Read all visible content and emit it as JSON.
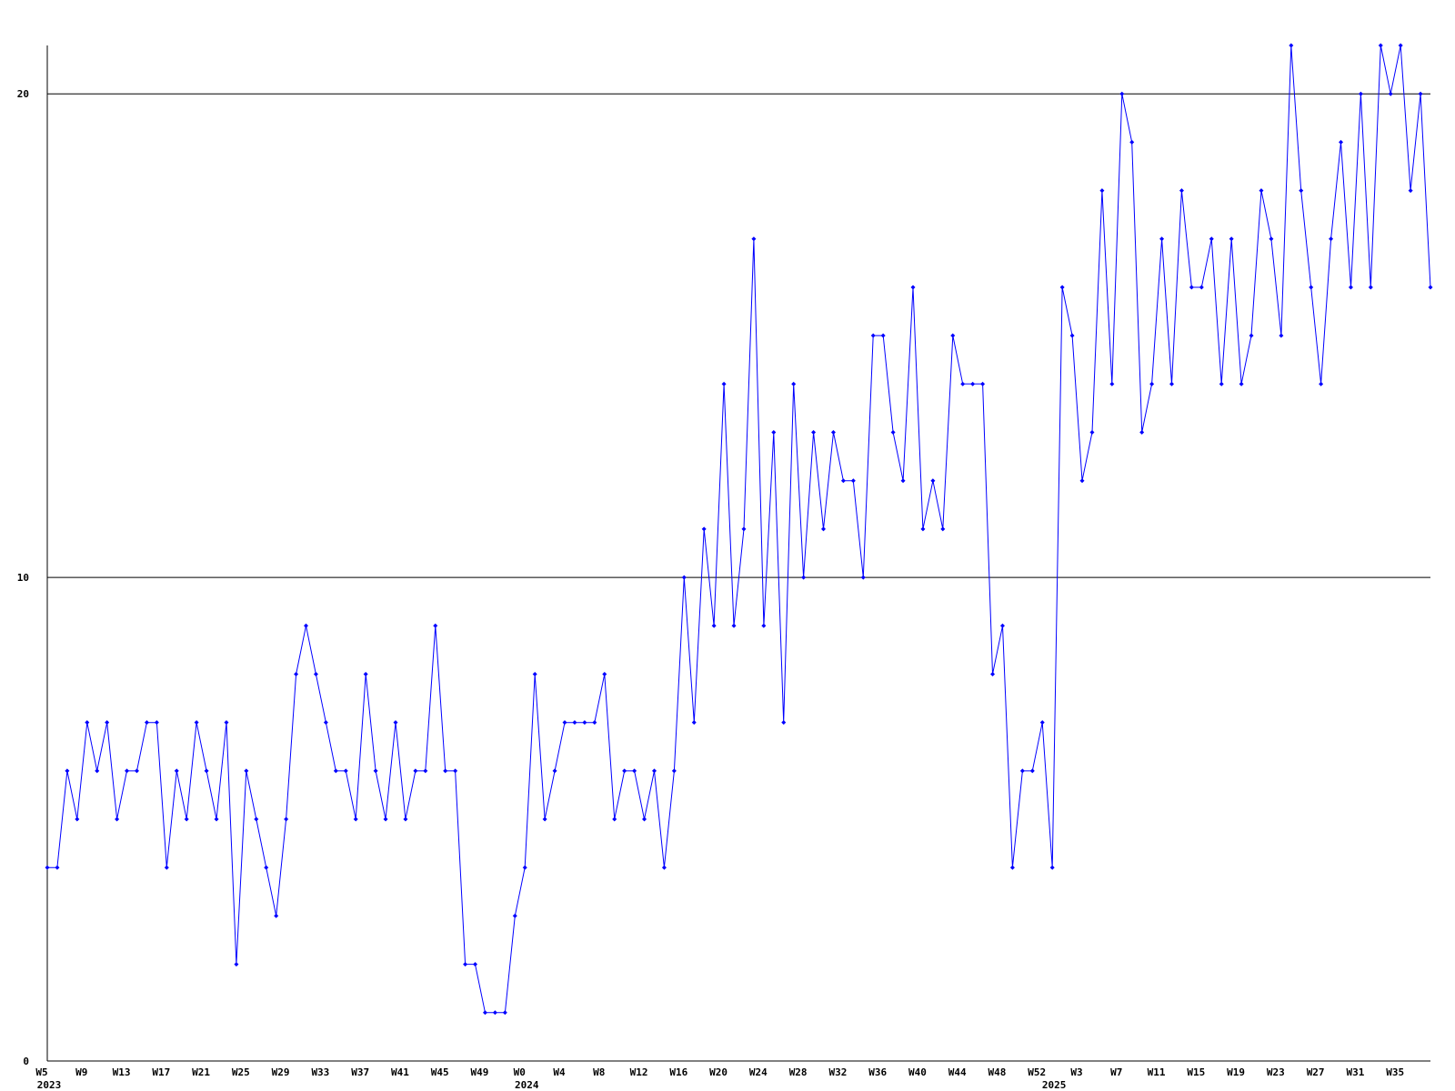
{
  "chart_data": {
    "type": "line",
    "color": "#0000ff",
    "categories": [
      "W5",
      null,
      null,
      null,
      "W9",
      null,
      null,
      null,
      "W13",
      null,
      null,
      null,
      "W17",
      null,
      null,
      null,
      "W21",
      null,
      null,
      null,
      "W25",
      null,
      null,
      null,
      "W29",
      null,
      null,
      null,
      "W33",
      null,
      null,
      null,
      "W37",
      null,
      null,
      null,
      "W41",
      null,
      null,
      null,
      "W45",
      null,
      null,
      null,
      "W49",
      null,
      null,
      null,
      "W0",
      null,
      null,
      null,
      "W4",
      null,
      null,
      null,
      "W8",
      null,
      null,
      null,
      "W12",
      null,
      null,
      null,
      "W16",
      null,
      null,
      null,
      "W20",
      null,
      null,
      null,
      "W24",
      null,
      null,
      null,
      "W28",
      null,
      null,
      null,
      "W32",
      null,
      null,
      null,
      "W36",
      null,
      null,
      null,
      "W40",
      null,
      null,
      null,
      "W44",
      null,
      null,
      null,
      "W48",
      null,
      null,
      null,
      "W52",
      null,
      null,
      null,
      "W3",
      null,
      null,
      null,
      "W7",
      null,
      null,
      null,
      "W11",
      null,
      null,
      null,
      "W15",
      null,
      null,
      null,
      "W19",
      null,
      null,
      null,
      "W23",
      null,
      null,
      null,
      "W27",
      null,
      null,
      null,
      "W31",
      null,
      null,
      null,
      "W35",
      null,
      null,
      null
    ],
    "category_years": [
      "2023",
      null,
      null,
      null,
      null,
      null,
      null,
      null,
      null,
      null,
      null,
      null,
      null,
      null,
      null,
      null,
      null,
      null,
      null,
      null,
      null,
      null,
      null,
      null,
      null,
      null,
      null,
      null,
      null,
      null,
      null,
      null,
      null,
      null,
      null,
      null,
      null,
      null,
      null,
      null,
      null,
      null,
      null,
      null,
      null,
      null,
      null,
      null,
      "2024",
      null,
      null,
      null,
      null,
      null,
      null,
      null,
      null,
      null,
      null,
      null,
      null,
      null,
      null,
      null,
      null,
      null,
      null,
      null,
      null,
      null,
      null,
      null,
      null,
      null,
      null,
      null,
      null,
      null,
      null,
      null,
      null,
      null,
      null,
      null,
      null,
      null,
      null,
      null,
      null,
      null,
      null,
      null,
      null,
      null,
      null,
      null,
      null,
      null,
      null,
      null,
      null,
      "2025",
      null,
      null,
      null,
      null,
      null,
      null,
      null,
      null,
      null,
      null,
      null,
      null,
      null,
      null,
      null,
      null,
      null,
      null,
      null,
      null,
      null,
      null,
      null,
      null,
      null,
      null,
      null,
      null,
      null,
      null,
      null,
      null,
      null,
      null,
      null,
      null,
      null,
      null
    ],
    "values": [
      4,
      4,
      6,
      5,
      7,
      6,
      7,
      5,
      6,
      6,
      7,
      7,
      4,
      6,
      5,
      7,
      6,
      5,
      7,
      2,
      6,
      5,
      4,
      3,
      5,
      8,
      9,
      8,
      7,
      6,
      6,
      5,
      8,
      6,
      5,
      7,
      5,
      6,
      6,
      9,
      6,
      6,
      2,
      2,
      1,
      1,
      1,
      3,
      4,
      8,
      5,
      6,
      7,
      7,
      7,
      7,
      8,
      5,
      6,
      6,
      5,
      6,
      4,
      6,
      10,
      7,
      11,
      9,
      14,
      9,
      11,
      17,
      9,
      13,
      7,
      14,
      10,
      13,
      11,
      13,
      12,
      12,
      10,
      15,
      15,
      13,
      12,
      16,
      11,
      12,
      11,
      15,
      14,
      14,
      14,
      8,
      9,
      4,
      6,
      6,
      7,
      4,
      16,
      15,
      12,
      13,
      18,
      14,
      20,
      19,
      13,
      14,
      17,
      14,
      18,
      16,
      16,
      17,
      14,
      17,
      14,
      15,
      18,
      17,
      15,
      21,
      18,
      16,
      14,
      17,
      19,
      16,
      20,
      16,
      21,
      20,
      21,
      18,
      20,
      16
    ],
    "ylim": [
      0,
      21
    ],
    "yticks": [
      0,
      10,
      20
    ],
    "grid": true
  }
}
